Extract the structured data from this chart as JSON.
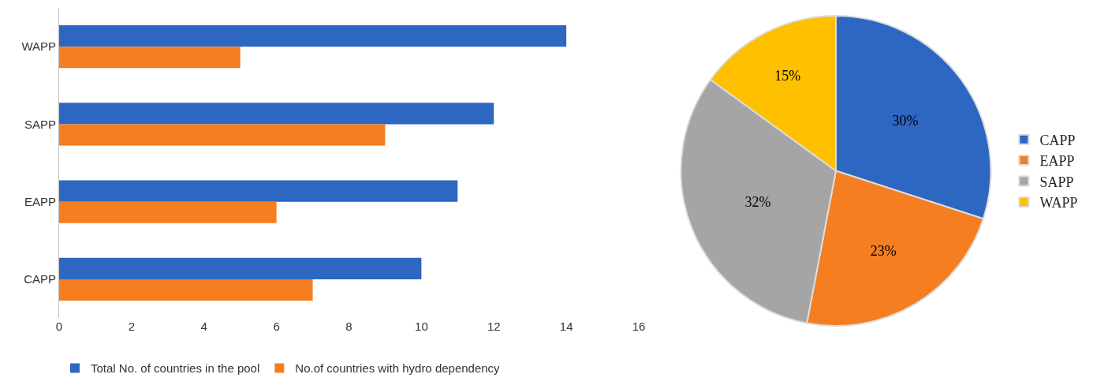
{
  "chart_data": [
    {
      "type": "bar",
      "orientation": "horizontal",
      "categories": [
        "WAPP",
        "SAPP",
        "EAPP",
        "CAPP"
      ],
      "series": [
        {
          "name": "Total No. of countries in the pool",
          "color": "#2e67c2",
          "values": [
            14,
            12,
            11,
            10
          ]
        },
        {
          "name": "No.of countries with hydro dependency",
          "color": "#f47e20",
          "values": [
            5,
            9,
            6,
            7
          ]
        }
      ],
      "xlim": [
        0,
        16
      ],
      "xticks": [
        0,
        2,
        4,
        6,
        8,
        10,
        12,
        14,
        16
      ],
      "grid": false,
      "legend": "bottom"
    },
    {
      "type": "pie",
      "categories": [
        "CAPP",
        "EAPP",
        "SAPP",
        "WAPP"
      ],
      "values": [
        30,
        23,
        32,
        15
      ],
      "colors": [
        "#2e67c2",
        "#f47e20",
        "#a5a5a5",
        "#ffc000"
      ],
      "value_labels": [
        "30%",
        "23%",
        "32%",
        "15%"
      ],
      "legend": "right"
    }
  ]
}
